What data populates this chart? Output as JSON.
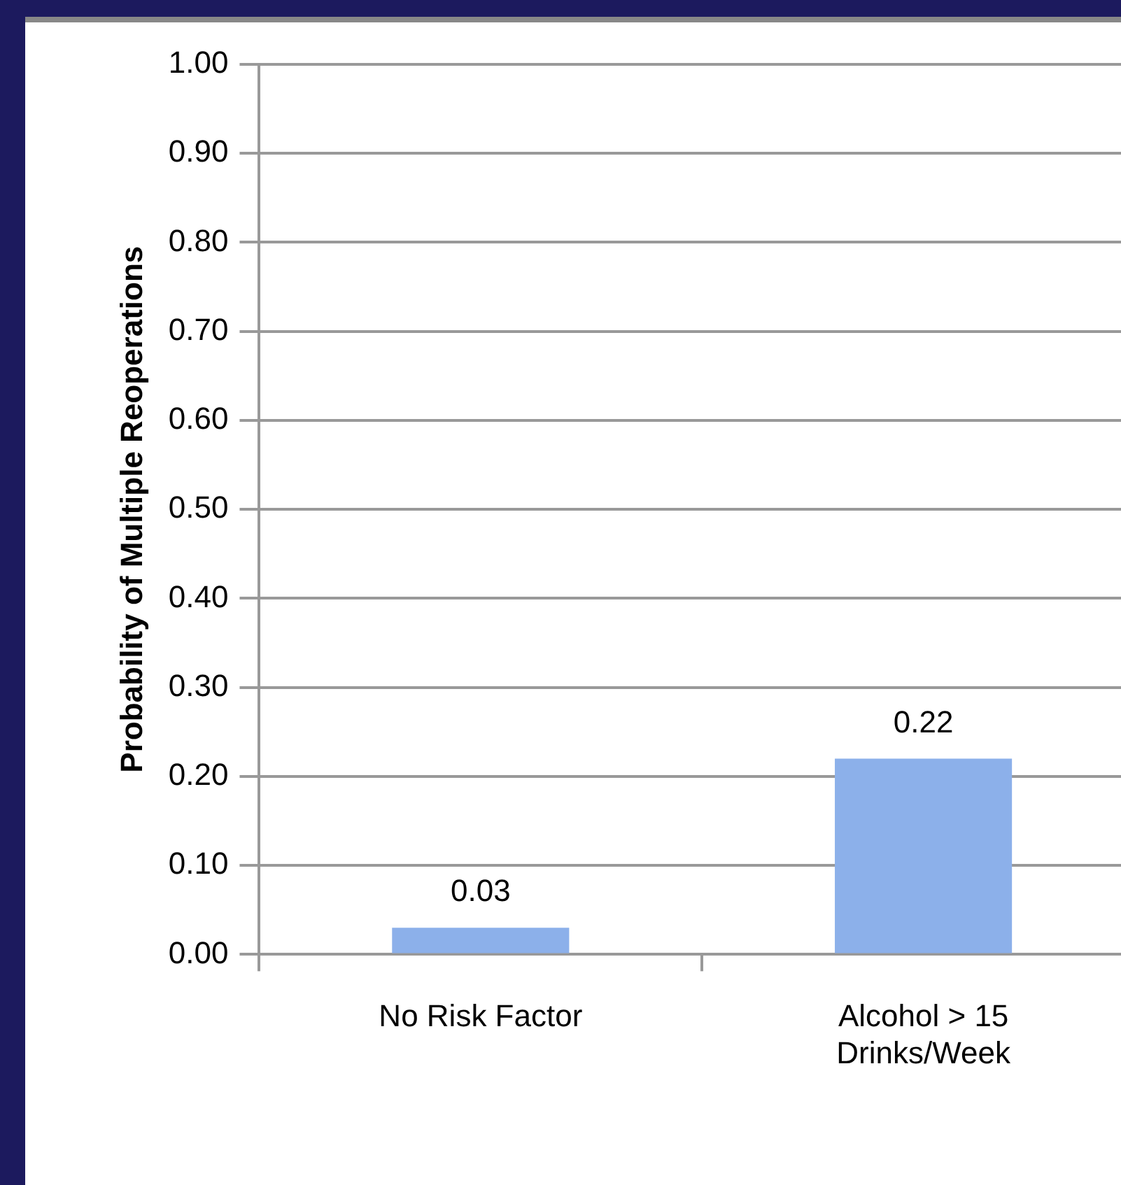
{
  "chart_data": {
    "type": "bar",
    "ylabel": "Probability of Multiple Reoperations",
    "categories": [
      "No Risk Factor",
      "Alcohol > 15 Drinks/Week"
    ],
    "values": [
      0.03,
      0.22
    ],
    "color": "#8cb0ea",
    "ylim": [
      0,
      1
    ],
    "yticks": [
      {
        "value": 0,
        "label": "0.00"
      },
      {
        "value": 0.1,
        "label": "0.10"
      },
      {
        "value": 0.2,
        "label": "0.20"
      },
      {
        "value": 0.3,
        "label": "0.30"
      },
      {
        "value": 0.4,
        "label": "0.40"
      },
      {
        "value": 0.5,
        "label": "0.50"
      },
      {
        "value": 0.6,
        "label": "0.60"
      },
      {
        "value": 0.7,
        "label": "0.70"
      },
      {
        "value": 0.8,
        "label": "0.80"
      },
      {
        "value": 0.9,
        "label": "0.90"
      },
      {
        "value": 1,
        "label": "1.00"
      }
    ],
    "grid": "y",
    "data_labels": true,
    "legend": false
  }
}
